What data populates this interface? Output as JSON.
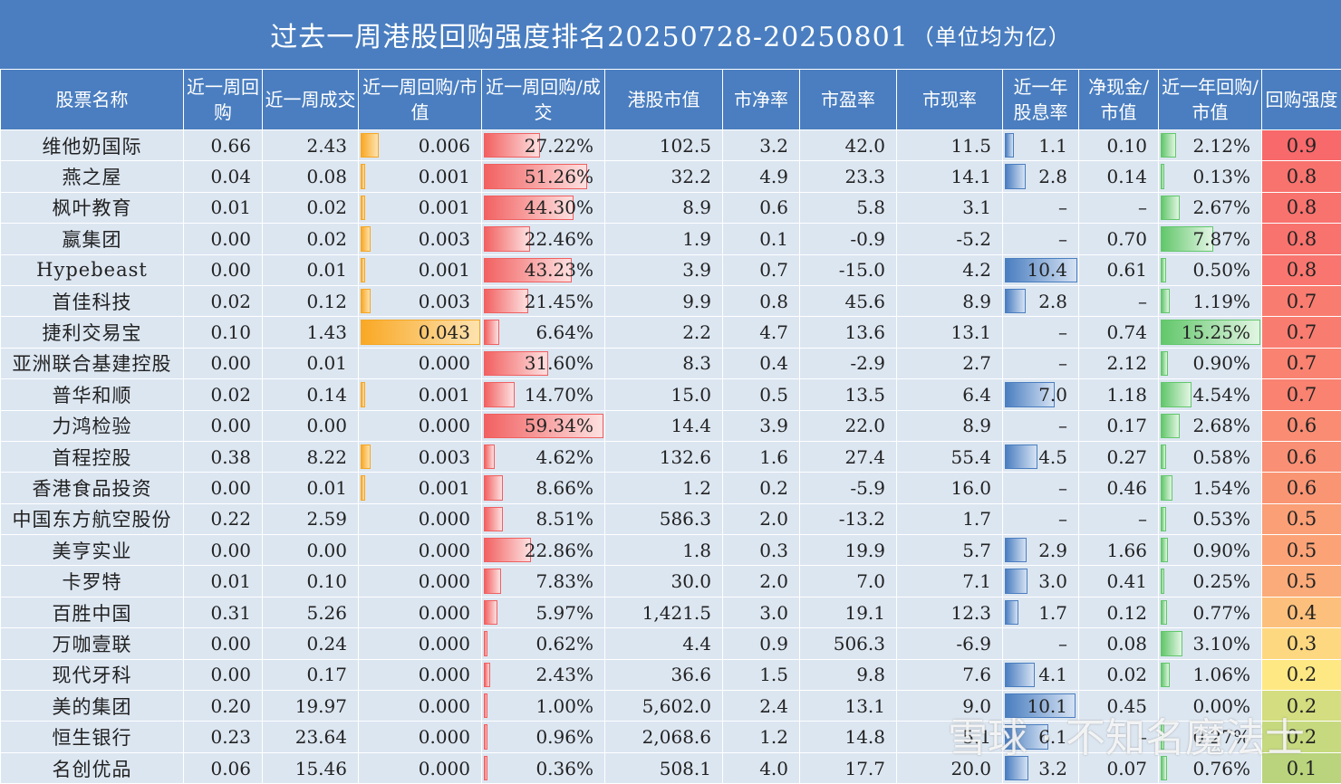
{
  "title": "过去一周港股回购强度排名20250728-20250801",
  "title_unit": "（单位均为亿）",
  "watermark": "雪球 · 不知名魔法士",
  "headers": [
    "股票名称",
    "近一周回购",
    "近一周成交",
    "近一周回购/市值",
    "近一周回购/成交",
    "港股市值",
    "市净率",
    "市盈率",
    "市现率",
    "近一年股息率",
    "净现金/市值",
    "近一年回购/市值",
    "回购强度"
  ],
  "colors": {
    "orange": "#f9a825",
    "red": "#f26161",
    "blue": "#4a7ec0",
    "green": "#62c76b"
  },
  "rows": [
    {
      "name": "维他奶国际",
      "buy": "0.66",
      "vol": "2.43",
      "bm": "0.006",
      "bm_v": 0.006,
      "bv": "27.22%",
      "bv_v": 27.22,
      "mcap": "102.5",
      "pb": "3.2",
      "pe": "42.0",
      "pcf": "11.5",
      "div": "1.1",
      "div_v": 1.1,
      "nc": "0.10",
      "ym": "2.12%",
      "ym_v": 2.12,
      "s": "0.9",
      "sc": "#f8696b"
    },
    {
      "name": "燕之屋",
      "buy": "0.04",
      "vol": "0.08",
      "bm": "0.001",
      "bm_v": 0.001,
      "bv": "51.26%",
      "bv_v": 51.26,
      "mcap": "32.2",
      "pb": "4.9",
      "pe": "23.3",
      "pcf": "14.1",
      "div": "2.8",
      "div_v": 2.8,
      "nc": "0.14",
      "ym": "0.13%",
      "ym_v": 0.13,
      "s": "0.8",
      "sc": "#f8726e"
    },
    {
      "name": "枫叶教育",
      "buy": "0.01",
      "vol": "0.02",
      "bm": "0.001",
      "bm_v": 0.001,
      "bv": "44.30%",
      "bv_v": 44.3,
      "mcap": "8.9",
      "pb": "0.6",
      "pe": "5.8",
      "pcf": "3.1",
      "div": "–",
      "div_v": 0,
      "nc": "–",
      "ym": "2.67%",
      "ym_v": 2.67,
      "s": "0.8",
      "sc": "#f8726e"
    },
    {
      "name": "嬴集团",
      "buy": "0.00",
      "vol": "0.02",
      "bm": "0.003",
      "bm_v": 0.003,
      "bv": "22.46%",
      "bv_v": 22.46,
      "mcap": "1.9",
      "pb": "0.1",
      "pe": "-0.9",
      "pcf": "-5.2",
      "div": "–",
      "div_v": 0,
      "nc": "0.70",
      "ym": "7.87%",
      "ym_v": 7.87,
      "s": "0.8",
      "sc": "#f8726e"
    },
    {
      "name": "Hypebeast",
      "buy": "0.00",
      "vol": "0.01",
      "bm": "0.001",
      "bm_v": 0.001,
      "bv": "43.23%",
      "bv_v": 43.23,
      "mcap": "3.9",
      "pb": "0.7",
      "pe": "-15.0",
      "pcf": "4.2",
      "div": "10.4",
      "div_v": 10.4,
      "nc": "0.61",
      "ym": "0.50%",
      "ym_v": 0.5,
      "s": "0.8",
      "sc": "#f8766f"
    },
    {
      "name": "首佳科技",
      "buy": "0.02",
      "vol": "0.12",
      "bm": "0.003",
      "bm_v": 0.003,
      "bv": "21.45%",
      "bv_v": 21.45,
      "mcap": "9.9",
      "pb": "0.8",
      "pe": "45.6",
      "pcf": "8.9",
      "div": "2.8",
      "div_v": 2.8,
      "nc": "–",
      "ym": "1.19%",
      "ym_v": 1.19,
      "s": "0.7",
      "sc": "#f97c70"
    },
    {
      "name": "捷利交易宝",
      "buy": "0.10",
      "vol": "1.43",
      "bm": "0.043",
      "bm_v": 0.043,
      "bv": "6.64%",
      "bv_v": 6.64,
      "mcap": "2.2",
      "pb": "4.7",
      "pe": "13.6",
      "pcf": "13.1",
      "div": "–",
      "div_v": 0,
      "nc": "0.74",
      "ym": "15.25%",
      "ym_v": 15.25,
      "s": "0.7",
      "sc": "#f97c70"
    },
    {
      "name": "亚洲联合基建控股",
      "buy": "0.00",
      "vol": "0.01",
      "bm": "0.000",
      "bm_v": 0,
      "bv": "31.60%",
      "bv_v": 31.6,
      "mcap": "8.3",
      "pb": "0.4",
      "pe": "-2.9",
      "pcf": "2.7",
      "div": "–",
      "div_v": 0,
      "nc": "2.12",
      "ym": "0.90%",
      "ym_v": 0.9,
      "s": "0.7",
      "sc": "#f98271"
    },
    {
      "name": "普华和顺",
      "buy": "0.02",
      "vol": "0.14",
      "bm": "0.001",
      "bm_v": 0.001,
      "bv": "14.70%",
      "bv_v": 14.7,
      "mcap": "15.0",
      "pb": "0.5",
      "pe": "13.5",
      "pcf": "6.4",
      "div": "7.0",
      "div_v": 7.0,
      "nc": "1.18",
      "ym": "4.54%",
      "ym_v": 4.54,
      "s": "0.7",
      "sc": "#f98271"
    },
    {
      "name": "力鸿检验",
      "buy": "0.00",
      "vol": "0.00",
      "bm": "0.000",
      "bm_v": 0,
      "bv": "59.34%",
      "bv_v": 59.34,
      "mcap": "14.4",
      "pb": "3.9",
      "pe": "22.0",
      "pcf": "8.9",
      "div": "–",
      "div_v": 0,
      "nc": "0.17",
      "ym": "2.68%",
      "ym_v": 2.68,
      "s": "0.6",
      "sc": "#f98c73"
    },
    {
      "name": "首程控股",
      "buy": "0.38",
      "vol": "8.22",
      "bm": "0.003",
      "bm_v": 0.003,
      "bv": "4.62%",
      "bv_v": 4.62,
      "mcap": "132.6",
      "pb": "1.6",
      "pe": "27.4",
      "pcf": "55.4",
      "div": "4.5",
      "div_v": 4.5,
      "nc": "0.27",
      "ym": "0.58%",
      "ym_v": 0.58,
      "s": "0.6",
      "sc": "#f98f74"
    },
    {
      "name": "香港食品投资",
      "buy": "0.00",
      "vol": "0.01",
      "bm": "0.001",
      "bm_v": 0.001,
      "bv": "8.66%",
      "bv_v": 8.66,
      "mcap": "1.2",
      "pb": "0.2",
      "pe": "-5.9",
      "pcf": "16.0",
      "div": "–",
      "div_v": 0,
      "nc": "0.46",
      "ym": "1.54%",
      "ym_v": 1.54,
      "s": "0.6",
      "sc": "#fa9574"
    },
    {
      "name": "中国东方航空股份",
      "buy": "0.22",
      "vol": "2.59",
      "bm": "0.000",
      "bm_v": 0,
      "bv": "8.51%",
      "bv_v": 8.51,
      "mcap": "586.3",
      "pb": "2.0",
      "pe": "-13.2",
      "pcf": "1.7",
      "div": "–",
      "div_v": 0,
      "nc": "–",
      "ym": "0.53%",
      "ym_v": 0.53,
      "s": "0.5",
      "sc": "#fa9f76"
    },
    {
      "name": "美亨实业",
      "buy": "0.00",
      "vol": "0.00",
      "bm": "0.000",
      "bm_v": 0,
      "bv": "22.86%",
      "bv_v": 22.86,
      "mcap": "1.8",
      "pb": "0.3",
      "pe": "19.9",
      "pcf": "5.7",
      "div": "2.9",
      "div_v": 2.9,
      "nc": "1.66",
      "ym": "0.90%",
      "ym_v": 0.9,
      "s": "0.5",
      "sc": "#fba377"
    },
    {
      "name": "卡罗特",
      "buy": "0.01",
      "vol": "0.10",
      "bm": "0.000",
      "bm_v": 0,
      "bv": "7.83%",
      "bv_v": 7.83,
      "mcap": "30.0",
      "pb": "2.0",
      "pe": "7.0",
      "pcf": "7.1",
      "div": "3.0",
      "div_v": 3.0,
      "nc": "0.41",
      "ym": "0.25%",
      "ym_v": 0.25,
      "s": "0.5",
      "sc": "#fbab79"
    },
    {
      "name": "百胜中国",
      "buy": "0.31",
      "vol": "5.26",
      "bm": "0.000",
      "bm_v": 0,
      "bv": "5.97%",
      "bv_v": 5.97,
      "mcap": "1,421.5",
      "pb": "3.0",
      "pe": "19.1",
      "pcf": "12.3",
      "div": "1.7",
      "div_v": 1.7,
      "nc": "0.12",
      "ym": "0.77%",
      "ym_v": 0.77,
      "s": "0.4",
      "sc": "#fcc07c"
    },
    {
      "name": "万咖壹联",
      "buy": "0.00",
      "vol": "0.24",
      "bm": "0.000",
      "bm_v": 0,
      "bv": "0.62%",
      "bv_v": 0.62,
      "mcap": "4.4",
      "pb": "0.9",
      "pe": "506.3",
      "pcf": "-6.9",
      "div": "–",
      "div_v": 0,
      "nc": "0.08",
      "ym": "3.10%",
      "ym_v": 3.1,
      "s": "0.3",
      "sc": "#fed880"
    },
    {
      "name": "现代牙科",
      "buy": "0.00",
      "vol": "0.17",
      "bm": "0.000",
      "bm_v": 0,
      "bv": "2.43%",
      "bv_v": 2.43,
      "mcap": "36.6",
      "pb": "1.5",
      "pe": "9.8",
      "pcf": "7.6",
      "div": "4.1",
      "div_v": 4.1,
      "nc": "0.02",
      "ym": "1.06%",
      "ym_v": 1.06,
      "s": "0.2",
      "sc": "#fee883"
    },
    {
      "name": "美的集团",
      "buy": "0.20",
      "vol": "19.97",
      "bm": "0.000",
      "bm_v": 0,
      "bv": "1.00%",
      "bv_v": 1.0,
      "mcap": "5,602.0",
      "pb": "2.4",
      "pe": "13.1",
      "pcf": "9.0",
      "div": "10.1",
      "div_v": 10.1,
      "nc": "0.45",
      "ym": "0.00%",
      "ym_v": 0,
      "s": "0.2",
      "sc": "#d4dd7f"
    },
    {
      "name": "恒生银行",
      "buy": "0.23",
      "vol": "23.64",
      "bm": "0.000",
      "bm_v": 0,
      "bv": "0.96%",
      "bv_v": 0.96,
      "mcap": "2,068.6",
      "pb": "1.2",
      "pe": "14.8",
      "pcf": "5.1",
      "div": "6.1",
      "div_v": 6.1,
      "nc": "–",
      "ym": "0.27%",
      "ym_v": 0.27,
      "s": "0.2",
      "sc": "#c6d97e"
    },
    {
      "name": "名创优品",
      "buy": "0.06",
      "vol": "15.46",
      "bm": "0.000",
      "bm_v": 0,
      "bv": "0.36%",
      "bv_v": 0.36,
      "mcap": "508.1",
      "pb": "4.0",
      "pe": "17.7",
      "pcf": "20.0",
      "div": "3.2",
      "div_v": 3.2,
      "nc": "0.07",
      "ym": "0.76%",
      "ym_v": 0.76,
      "s": "0.1",
      "sc": "#b9d47c"
    }
  ]
}
